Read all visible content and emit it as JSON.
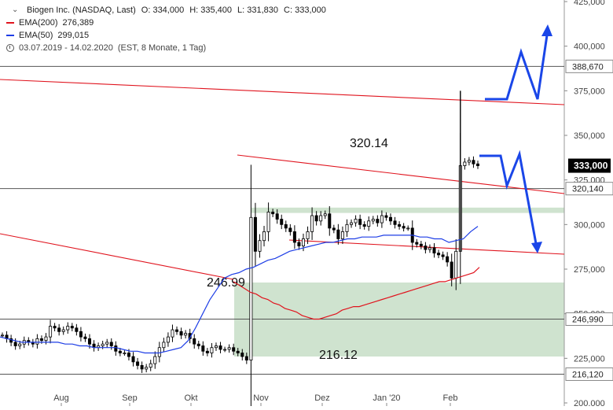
{
  "legend": {
    "instrument": "Biogen Inc. (NASDAQ, Last)",
    "open": "O: 334,000",
    "high": "H: 335,400",
    "low": "L: 331,830",
    "close": "C: 333,000",
    "ema200_label": "EMA(200)",
    "ema200_value": "276,389",
    "ema50_label": "EMA(50)",
    "ema50_value": "299,015",
    "range_text": "03.07.2019 - 14.02.2020",
    "range_detail": "(EST, 8 Monate, 1 Tag)"
  },
  "colors": {
    "candle": "#000000",
    "ema200": "#e0141e",
    "ema50": "#1e3ee6",
    "trendline": "#e0141e",
    "arrow": "#1a46e8",
    "zone": "#cfe3cf",
    "hline": "#555555",
    "price_tag": "#000000"
  },
  "chart_data": {
    "type": "candlestick",
    "x_labels": [
      "Aug",
      "Sep",
      "Okt",
      "Nov",
      "Dez",
      "Jan '20",
      "Feb"
    ],
    "y_ticks": [
      "425,000",
      "400,000",
      "375,000",
      "350,000",
      "325,000",
      "300,000",
      "275,000",
      "250,000",
      "225,000",
      "200,000"
    ],
    "ylim": [
      200,
      425
    ],
    "levels": [
      {
        "value": 388.67,
        "tag": "388,670"
      },
      {
        "value": 320.14,
        "tag": "320,140",
        "annotation": "320.14"
      },
      {
        "value": 246.99,
        "tag": "246,990",
        "annotation": "246.99"
      },
      {
        "value": 216.12,
        "tag": "216,120",
        "annotation": "216.12"
      }
    ],
    "last_price": {
      "value": 333.0,
      "tag": "333,000"
    },
    "closes": [
      238,
      236,
      234,
      232,
      233,
      235,
      234,
      233,
      236,
      235,
      237,
      243,
      242,
      240,
      241,
      243,
      242,
      240,
      237,
      236,
      233,
      231,
      232,
      233,
      234,
      232,
      229,
      228,
      228,
      226,
      223,
      221,
      219,
      220,
      222,
      226,
      231,
      234,
      237,
      241,
      240,
      238,
      239,
      236,
      233,
      232,
      229,
      228,
      231,
      232,
      230,
      230,
      231,
      229,
      228,
      226,
      224,
      304,
      285,
      291,
      296,
      307,
      306,
      303,
      300,
      298,
      296,
      290,
      288,
      292,
      296,
      305,
      302,
      305,
      306,
      298,
      297,
      292,
      296,
      300,
      301,
      303,
      300,
      299,
      302,
      303,
      301,
      305,
      304,
      302,
      300,
      299,
      298,
      298,
      290,
      289,
      288,
      286,
      287,
      284,
      283,
      282,
      279,
      270,
      285,
      333,
      335,
      336,
      334,
      333
    ],
    "ema50": [
      237,
      236,
      235,
      234,
      234,
      234,
      234,
      234,
      234,
      233,
      233,
      232,
      232,
      231,
      231,
      231,
      231,
      230,
      229,
      229,
      228,
      228,
      228,
      229,
      230,
      231,
      235,
      242,
      250,
      258,
      264,
      270,
      272,
      273,
      275,
      276,
      278,
      280,
      281,
      283,
      285,
      286,
      287,
      288,
      289,
      290,
      290,
      291,
      292,
      292,
      293,
      293,
      293,
      294,
      294,
      294,
      294,
      294,
      293,
      293,
      292,
      292,
      290,
      291,
      292,
      296,
      299
    ],
    "ema200": [
      268,
      266,
      264,
      262,
      261,
      259,
      258,
      256,
      255,
      253,
      252,
      251,
      249,
      248,
      247,
      247,
      248,
      249,
      250,
      252,
      253,
      254,
      254,
      255,
      256,
      257,
      258,
      259,
      260,
      261,
      262,
      263,
      264,
      265,
      266,
      267,
      268,
      268,
      269,
      270,
      271,
      272,
      273,
      276
    ]
  }
}
